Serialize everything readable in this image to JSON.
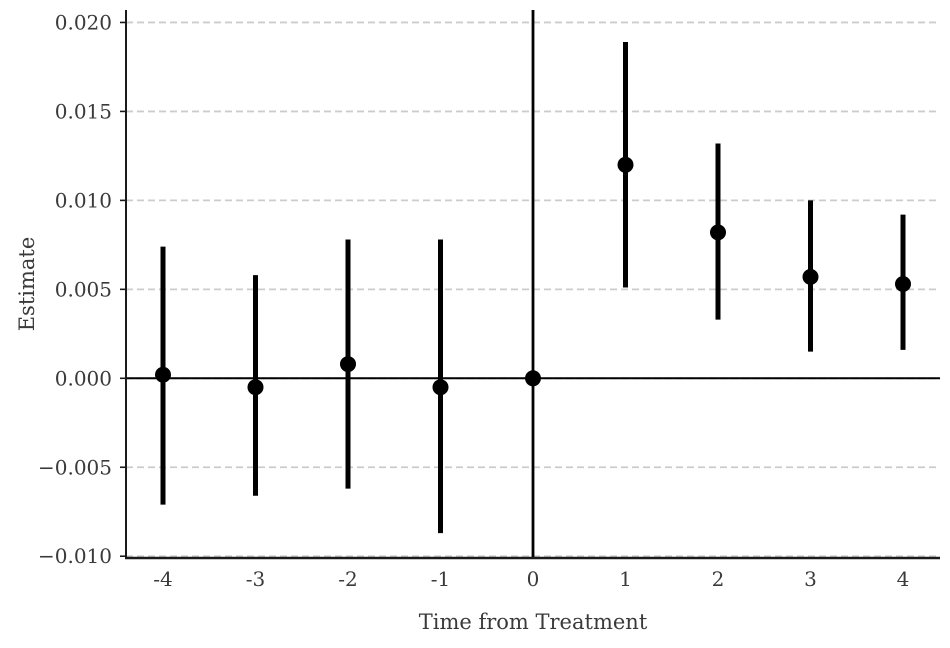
{
  "chart_data": {
    "type": "scatter",
    "subtype": "event-study-errorbar",
    "title": "",
    "xlabel": "Time from Treatment",
    "ylabel": "Estimate",
    "x": [
      -4,
      -3,
      -2,
      -1,
      0,
      1,
      2,
      3,
      4
    ],
    "estimates": [
      0.0002,
      -0.0005,
      0.0008,
      -0.0005,
      0.0,
      0.012,
      0.0082,
      0.0057,
      0.0053
    ],
    "ci_low": [
      -0.0071,
      -0.0066,
      -0.0062,
      -0.0087,
      null,
      0.0051,
      0.0033,
      0.0015,
      0.0016
    ],
    "ci_high": [
      0.0074,
      0.0058,
      0.0078,
      0.0078,
      null,
      0.0189,
      0.0132,
      0.01,
      0.0092
    ],
    "xlim": [
      -4.4,
      4.4
    ],
    "ylim": [
      -0.0101,
      0.0207
    ],
    "xticks": {
      "values": [
        -4,
        -3,
        -2,
        -1,
        0,
        1,
        2,
        3,
        4
      ],
      "labels": [
        "-4",
        "-3",
        "-2",
        "-1",
        "0",
        "1",
        "2",
        "3",
        "4"
      ]
    },
    "yticks": {
      "values": [
        0.02,
        0.015,
        0.01,
        0.005,
        0.0,
        -0.005,
        -0.01
      ],
      "labels": [
        "0.020",
        "0.015",
        "0.010",
        "0.005",
        "0.000",
        "−0.005",
        "−0.010"
      ]
    },
    "reference_lines": {
      "hline_y": 0,
      "vline_x": 0
    },
    "grid": "horizontal-dashed",
    "legend": "none",
    "colors": {
      "marker": "#000000",
      "error_bar": "#000000",
      "reference_line": "#000000",
      "grid": "#cccccc",
      "spine": "#1a1a1a",
      "text": "#3a3a3a",
      "background": "#ffffff"
    }
  }
}
